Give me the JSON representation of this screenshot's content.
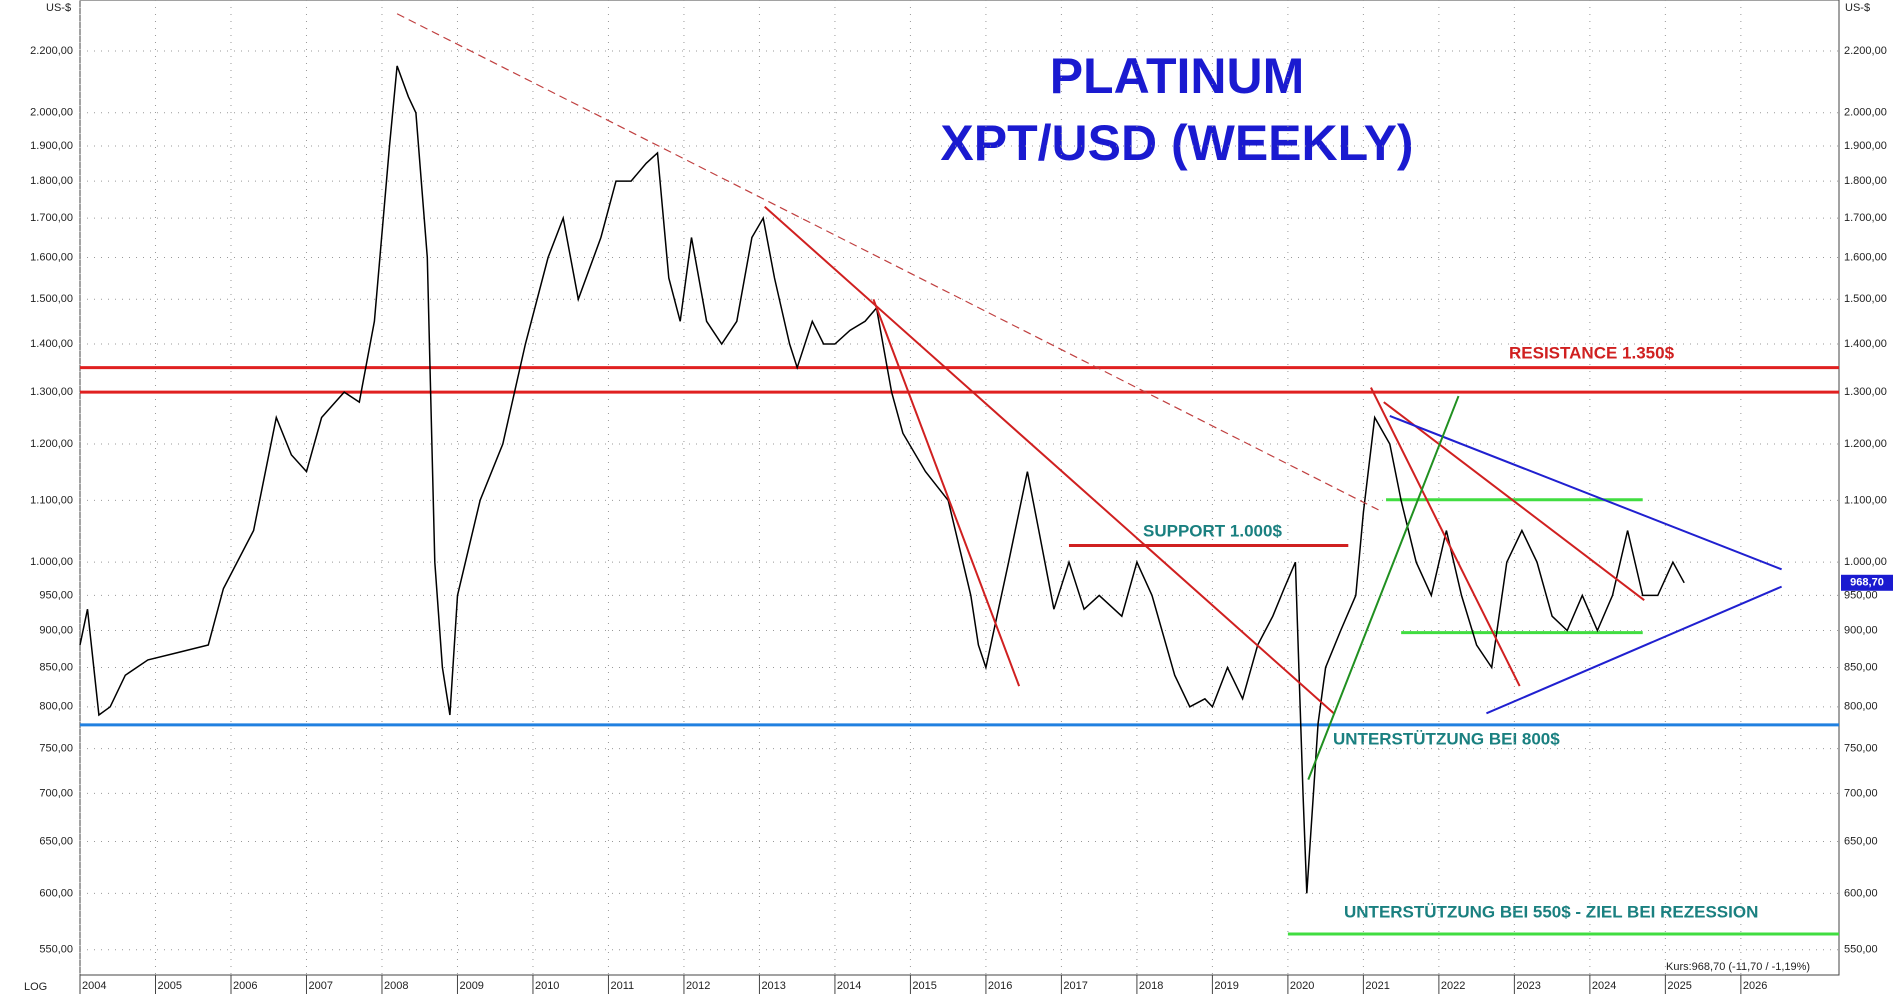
{
  "chart_data": {
    "type": "line",
    "title": "PLATINUM",
    "subtitle": "XPT/USD (WEEKLY)",
    "y_unit_left": "US-$",
    "y_unit_right": "US-$",
    "scale_label": "LOG",
    "log": true,
    "grid": true,
    "last_price_label": "968,70",
    "quote_text": "Kurs:968,70 (-11,70 / -1,19%)",
    "annotations": [
      "RESISTANCE 1.350$",
      "SUPPORT  1.000$",
      "UNTERSTÜTZUNG BEI  800$",
      "UNTERSTÜTZUNG BEI  550$ - ZIEL BEI REZESSION"
    ],
    "xlim": [
      2004,
      2027.3
    ],
    "xticks": [
      2004,
      2005,
      2006,
      2007,
      2008,
      2009,
      2010,
      2011,
      2012,
      2013,
      2014,
      2015,
      2016,
      2017,
      2018,
      2019,
      2020,
      2021,
      2022,
      2023,
      2024,
      2025,
      2026
    ],
    "ylim": [
      529,
      2380
    ],
    "yticks": [
      {
        "value": 550,
        "label": "550,00"
      },
      {
        "value": 600,
        "label": "600,00"
      },
      {
        "value": 650,
        "label": "650,00"
      },
      {
        "value": 700,
        "label": "700,00"
      },
      {
        "value": 750,
        "label": "750,00"
      },
      {
        "value": 800,
        "label": "800,00"
      },
      {
        "value": 850,
        "label": "850,00"
      },
      {
        "value": 900,
        "label": "900,00"
      },
      {
        "value": 950,
        "label": "950,00"
      },
      {
        "value": 1000,
        "label": "1.000,00"
      },
      {
        "value": 1100,
        "label": "1.100,00"
      },
      {
        "value": 1200,
        "label": "1.200,00"
      },
      {
        "value": 1300,
        "label": "1.300,00"
      },
      {
        "value": 1400,
        "label": "1.400,00"
      },
      {
        "value": 1500,
        "label": "1.500,00"
      },
      {
        "value": 1600,
        "label": "1.600,00"
      },
      {
        "value": 1700,
        "label": "1.700,00"
      },
      {
        "value": 1800,
        "label": "1.800,00"
      },
      {
        "value": 1900,
        "label": "1.900,00"
      },
      {
        "value": 2000,
        "label": "2.000,00"
      },
      {
        "value": 2200,
        "label": "2.200,00"
      }
    ],
    "series": [
      {
        "color": "#000000",
        "x": [
          2004.0,
          2004.1,
          2004.25,
          2004.4,
          2004.6,
          2004.9,
          2005.3,
          2005.7,
          2005.9,
          2006.3,
          2006.6,
          2006.8,
          2007.0,
          2007.2,
          2007.5,
          2007.7,
          2007.9,
          2008.1,
          2008.2,
          2008.35,
          2008.45,
          2008.6,
          2008.7,
          2008.8,
          2008.9,
          2009.0,
          2009.3,
          2009.6,
          2009.9,
          2010.2,
          2010.4,
          2010.6,
          2010.9,
          2011.1,
          2011.3,
          2011.5,
          2011.65,
          2011.8,
          2011.95,
          2012.1,
          2012.3,
          2012.5,
          2012.7,
          2012.9,
          2013.05,
          2013.2,
          2013.4,
          2013.5,
          2013.7,
          2013.85,
          2014.0,
          2014.2,
          2014.4,
          2014.55,
          2014.75,
          2014.9,
          2015.2,
          2015.5,
          2015.8,
          2015.9,
          2016.0,
          2016.3,
          2016.55,
          2016.7,
          2016.9,
          2017.1,
          2017.3,
          2017.5,
          2017.8,
          2018.0,
          2018.2,
          2018.5,
          2018.7,
          2018.9,
          2019.0,
          2019.2,
          2019.4,
          2019.6,
          2019.8,
          2019.95,
          2020.1,
          2020.2,
          2020.25,
          2020.4,
          2020.5,
          2020.7,
          2020.9,
          2021.0,
          2021.15,
          2021.35,
          2021.5,
          2021.7,
          2021.9,
          2022.1,
          2022.3,
          2022.5,
          2022.7,
          2022.9,
          2023.1,
          2023.3,
          2023.5,
          2023.7,
          2023.9,
          2024.1,
          2024.3,
          2024.5,
          2024.7,
          2024.9,
          2025.1,
          2025.25
        ],
        "values": [
          880,
          930,
          790,
          800,
          840,
          860,
          870,
          880,
          960,
          1050,
          1250,
          1180,
          1150,
          1250,
          1300,
          1280,
          1450,
          1900,
          2150,
          2050,
          2000,
          1600,
          1000,
          850,
          790,
          950,
          1100,
          1200,
          1400,
          1600,
          1700,
          1500,
          1650,
          1800,
          1800,
          1850,
          1880,
          1550,
          1450,
          1650,
          1450,
          1400,
          1450,
          1650,
          1700,
          1550,
          1400,
          1350,
          1450,
          1400,
          1400,
          1430,
          1450,
          1480,
          1300,
          1220,
          1150,
          1100,
          950,
          880,
          850,
          1000,
          1150,
          1050,
          930,
          1000,
          930,
          950,
          920,
          1000,
          950,
          840,
          800,
          810,
          800,
          850,
          810,
          880,
          920,
          960,
          1000,
          700,
          600,
          780,
          850,
          900,
          950,
          1080,
          1250,
          1200,
          1100,
          1000,
          950,
          1050,
          950,
          880,
          850,
          1000,
          1050,
          1000,
          920,
          900,
          950,
          900,
          950,
          1050,
          950,
          950,
          1000,
          968.7
        ]
      }
    ],
    "levels": [
      {
        "value": 1350,
        "color": "#e02020"
      },
      {
        "value": 1300,
        "color": "#e02020"
      },
      {
        "value": 778,
        "color": "#2080e0"
      },
      {
        "value": 1026,
        "color": "#d02020",
        "xrange": [
          2017.1,
          2020.8
        ]
      },
      {
        "value": 1101,
        "color": "#40dd40",
        "xrange": [
          2021.3,
          2024.7
        ]
      },
      {
        "value": 897,
        "color": "#40dd40",
        "xrange": [
          2021.5,
          2024.7
        ]
      },
      {
        "value": 563.5,
        "color": "#40dd40",
        "xrange": [
          2020.0,
          2027.3
        ]
      }
    ],
    "trendlines": [
      {
        "color": "#c04040",
        "dashed": true,
        "x": [
          2008.2,
          2021.2
        ],
        "y": [
          2330,
          1084
        ]
      },
      {
        "color": "#d02020",
        "x": [
          2013.07,
          2020.62
        ],
        "y": [
          1730,
          791
        ]
      },
      {
        "color": "#d02020",
        "x": [
          2014.51,
          2016.44
        ],
        "y": [
          1500,
          826
        ]
      },
      {
        "color": "#d02020",
        "x": [
          2021.1,
          2023.07
        ],
        "y": [
          1309,
          826
        ]
      },
      {
        "color": "#d02020",
        "x": [
          2021.27,
          2024.72
        ],
        "y": [
          1280,
          943
        ]
      },
      {
        "color": "#2020d0",
        "x": [
          2021.35,
          2026.54
        ],
        "y": [
          1253,
          989
        ]
      },
      {
        "color": "#2020d0",
        "x": [
          2022.63,
          2026.54
        ],
        "y": [
          792,
          963
        ]
      },
      {
        "color": "#209020",
        "x": [
          2020.27,
          2022.26
        ],
        "y": [
          715,
          1292
        ]
      }
    ]
  }
}
